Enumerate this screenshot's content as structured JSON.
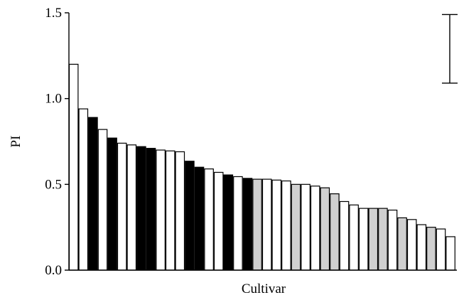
{
  "chart_data": {
    "type": "bar",
    "xlabel": "Cultivar",
    "ylabel": "PI",
    "ylim": [
      0,
      1.5
    ],
    "yticks": [
      "0.0",
      "0.5",
      "1.0",
      "1.5"
    ],
    "ytick_values": [
      0,
      0.5,
      1.0,
      1.5
    ],
    "grid": false,
    "colors": {
      "white": "#ffffff",
      "black": "#000000",
      "gray": "#d0d0d0"
    },
    "bars": [
      {
        "value": 1.2,
        "color": "white"
      },
      {
        "value": 0.94,
        "color": "white"
      },
      {
        "value": 0.89,
        "color": "black"
      },
      {
        "value": 0.82,
        "color": "white"
      },
      {
        "value": 0.77,
        "color": "black"
      },
      {
        "value": 0.74,
        "color": "white"
      },
      {
        "value": 0.73,
        "color": "white"
      },
      {
        "value": 0.72,
        "color": "black"
      },
      {
        "value": 0.71,
        "color": "black"
      },
      {
        "value": 0.7,
        "color": "white"
      },
      {
        "value": 0.695,
        "color": "white"
      },
      {
        "value": 0.69,
        "color": "white"
      },
      {
        "value": 0.635,
        "color": "black"
      },
      {
        "value": 0.6,
        "color": "black"
      },
      {
        "value": 0.59,
        "color": "white"
      },
      {
        "value": 0.57,
        "color": "white"
      },
      {
        "value": 0.555,
        "color": "black"
      },
      {
        "value": 0.545,
        "color": "white"
      },
      {
        "value": 0.535,
        "color": "black"
      },
      {
        "value": 0.53,
        "color": "gray"
      },
      {
        "value": 0.53,
        "color": "white"
      },
      {
        "value": 0.525,
        "color": "white"
      },
      {
        "value": 0.52,
        "color": "white"
      },
      {
        "value": 0.5,
        "color": "gray"
      },
      {
        "value": 0.5,
        "color": "white"
      },
      {
        "value": 0.49,
        "color": "white"
      },
      {
        "value": 0.48,
        "color": "gray"
      },
      {
        "value": 0.445,
        "color": "gray"
      },
      {
        "value": 0.4,
        "color": "white"
      },
      {
        "value": 0.38,
        "color": "white"
      },
      {
        "value": 0.36,
        "color": "white"
      },
      {
        "value": 0.36,
        "color": "gray"
      },
      {
        "value": 0.36,
        "color": "gray"
      },
      {
        "value": 0.35,
        "color": "white"
      },
      {
        "value": 0.305,
        "color": "gray"
      },
      {
        "value": 0.295,
        "color": "white"
      },
      {
        "value": 0.265,
        "color": "white"
      },
      {
        "value": 0.25,
        "color": "gray"
      },
      {
        "value": 0.24,
        "color": "white"
      },
      {
        "value": 0.195,
        "color": "white"
      }
    ],
    "error_bar": {
      "low": 1.09,
      "high": 1.49,
      "placement": "top-right"
    }
  }
}
